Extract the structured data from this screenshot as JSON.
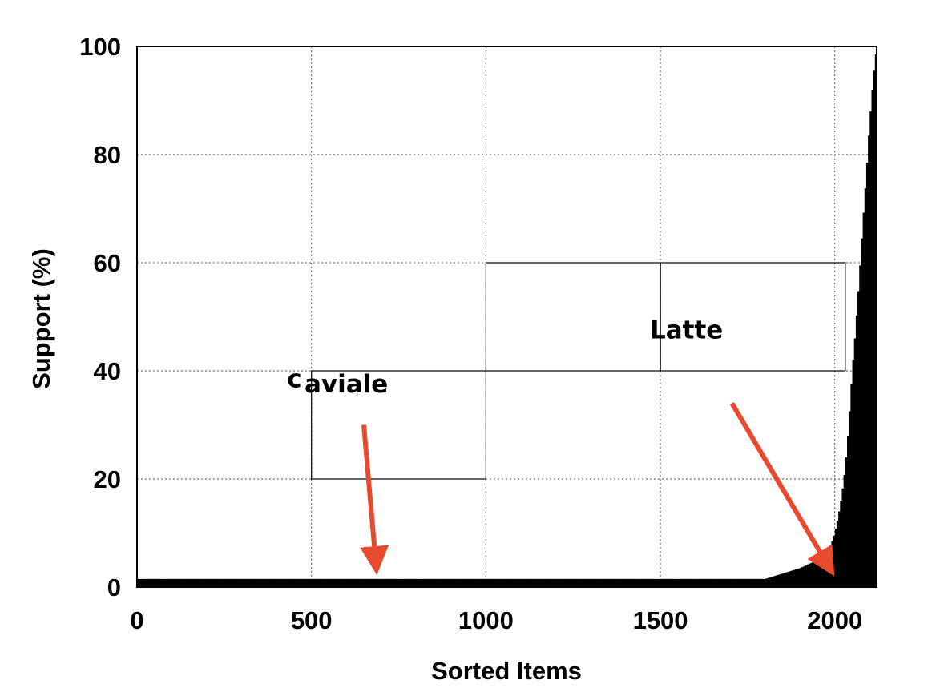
{
  "chart_data": {
    "type": "bar",
    "xlabel": "Sorted Items",
    "ylabel": "Support (%)",
    "xlim": [
      0,
      2120
    ],
    "ylim": [
      0,
      100
    ],
    "xticks": [
      0,
      500,
      1000,
      1500,
      2000
    ],
    "yticks": [
      0,
      20,
      40,
      60,
      80,
      100
    ],
    "grid": true,
    "bar_color": "#000000",
    "series": [
      {
        "x": [
          0,
          500,
          1000,
          1500,
          1800,
          1850,
          1900,
          1950,
          1970,
          1990,
          2000,
          2010,
          2020,
          2030,
          2040,
          2050,
          2060,
          2070,
          2080,
          2090,
          2100,
          2110,
          2120
        ],
        "values": [
          1.5,
          1.5,
          1.5,
          1.5,
          1.5,
          2.5,
          3.5,
          5,
          6,
          8,
          10,
          13,
          17,
          22,
          30,
          40,
          48,
          57,
          67,
          76,
          86,
          94,
          100
        ]
      }
    ],
    "annotation_boxes": [
      {
        "x0": 500,
        "x1": 1000,
        "y0": 20,
        "y1": 40
      },
      {
        "x0": 1000,
        "x1": 1500,
        "y0": 40,
        "y1": 60
      },
      {
        "x0": 1500,
        "x1": 2030,
        "y0": 40,
        "y1": 60
      }
    ],
    "annotations": [
      {
        "text": "c",
        "x": 430,
        "y": 37
      },
      {
        "text": "aviale",
        "x": 480,
        "y": 36
      },
      {
        "text": "Latte",
        "x": 1470,
        "y": 46
      }
    ],
    "arrows": [
      {
        "from": [
          650,
          30
        ],
        "to": [
          685,
          4
        ],
        "color": "#e84a2f"
      },
      {
        "from": [
          1705,
          34
        ],
        "to": [
          1985,
          3.5
        ],
        "color": "#e84a2f"
      }
    ]
  }
}
